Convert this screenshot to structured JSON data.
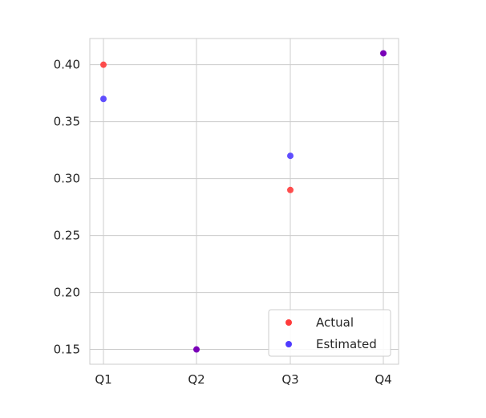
{
  "chart_data": {
    "type": "scatter",
    "categories": [
      "Q1",
      "Q2",
      "Q3",
      "Q4"
    ],
    "series": [
      {
        "name": "Actual",
        "color": "#ff3b3b",
        "values": [
          0.4,
          0.15,
          0.29,
          0.41
        ]
      },
      {
        "name": "Estimated",
        "color": "#4f3bff",
        "values": [
          0.37,
          0.15,
          0.32,
          0.41
        ]
      }
    ],
    "yticks": [
      0.15,
      0.2,
      0.25,
      0.3,
      0.35,
      0.4
    ],
    "ytick_labels": [
      "0.15",
      "0.20",
      "0.25",
      "0.30",
      "0.35",
      "0.40"
    ],
    "ylim": [
      0.137,
      0.423
    ],
    "title": "",
    "xlabel": "",
    "ylabel": "",
    "grid": true,
    "legend_position": "bottom-right",
    "overlap_color": "#7a00b8"
  }
}
